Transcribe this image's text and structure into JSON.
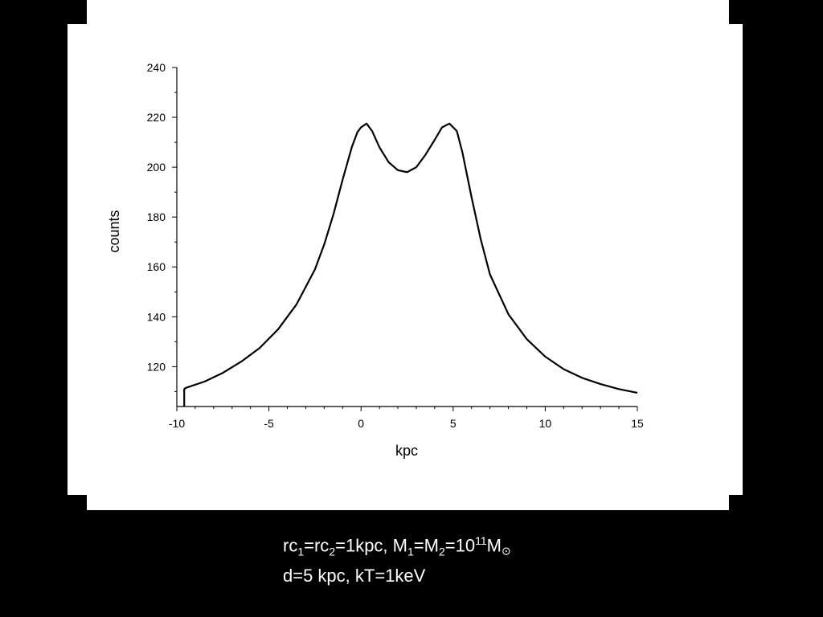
{
  "chart_data": {
    "type": "line",
    "title": "",
    "xlabel": "kpc",
    "ylabel": "counts",
    "xlim": [
      -10,
      15
    ],
    "ylim": [
      104,
      240
    ],
    "xticks": [
      -10,
      -5,
      0,
      5,
      10,
      15
    ],
    "yticks": [
      120,
      140,
      160,
      180,
      200,
      220,
      240
    ],
    "grid": false,
    "series": [
      {
        "x": [
          -9.6,
          -9.6,
          -9.5,
          -8.5,
          -7.5,
          -6.5,
          -5.5,
          -4.5,
          -3.5,
          -2.5,
          -2.0,
          -1.5,
          -1.0,
          -0.5,
          -0.2,
          0.0,
          0.3,
          0.6,
          1.0,
          1.5,
          2.0,
          2.5,
          3.0,
          3.5,
          4.0,
          4.4,
          4.8,
          5.2,
          5.5,
          6.0,
          6.5,
          7.0,
          8.0,
          9.0,
          10.0,
          11.0,
          12.0,
          13.0,
          14.0,
          15.0
        ],
        "y": [
          104,
          111,
          111.5,
          114,
          117.5,
          122,
          127.5,
          135,
          145,
          159,
          169,
          181,
          195,
          208,
          214,
          216,
          217.5,
          214.5,
          208,
          202,
          198.8,
          198,
          200,
          205,
          211,
          216,
          217.5,
          214.5,
          206,
          188,
          171,
          157,
          141,
          131,
          124,
          119,
          115.5,
          113,
          111,
          109.5
        ]
      }
    ]
  },
  "caption": {
    "line1": {
      "rc": "rc",
      "rc1_sub": "1",
      "eq1": "=rc",
      "rc2_sub": "2",
      "rest1": "=1kpc, M",
      "m1_sub": "1",
      "eq2": "=M",
      "m2_sub": "2",
      "eq3": "=10",
      "exp": "11",
      "m": "M",
      "sun": "⊙"
    },
    "line2": "d=5 kpc, kT=1keV"
  }
}
